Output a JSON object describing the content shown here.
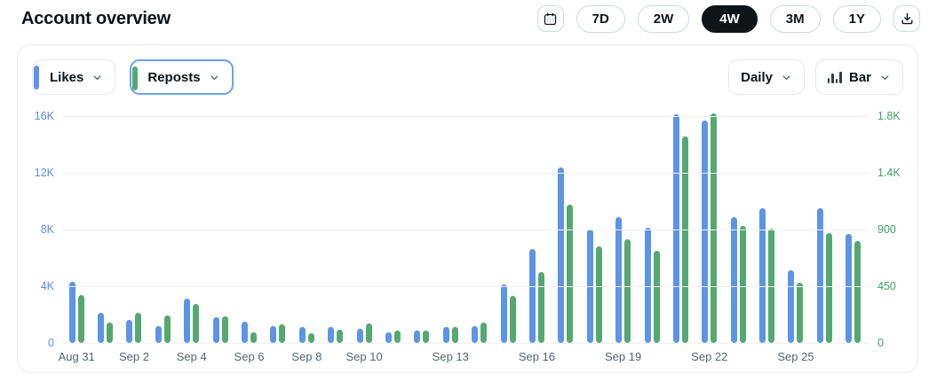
{
  "header": {
    "title": "Account overview",
    "calendar_icon": "calendar-icon",
    "download_icon": "download-icon",
    "ranges": [
      {
        "label": "7D",
        "active": false
      },
      {
        "label": "2W",
        "active": false
      },
      {
        "label": "4W",
        "active": true
      },
      {
        "label": "3M",
        "active": false
      },
      {
        "label": "1Y",
        "active": false
      }
    ],
    "active_pill_bg": "#0f1419"
  },
  "controls": {
    "likes": {
      "label": "Likes",
      "accent_color": "#5d95e6",
      "focused": false
    },
    "reposts": {
      "label": "Reposts",
      "accent_color": "#55a871",
      "focused": true,
      "focus_ring_color": "#6aa3f0"
    },
    "interval": {
      "label": "Daily"
    },
    "chart_type": {
      "label": "Bar",
      "icon": "bar-chart-icon"
    }
  },
  "chart_data": {
    "type": "bar",
    "title": "Account overview",
    "categories": [
      "Aug 31",
      "Sep 1",
      "Sep 2",
      "Sep 3",
      "Sep 4",
      "Sep 5",
      "Sep 6",
      "Sep 7",
      "Sep 8",
      "Sep 9",
      "Sep 10",
      "Sep 11",
      "Sep 12",
      "Sep 13",
      "Sep 14",
      "Sep 15",
      "Sep 16",
      "Sep 17",
      "Sep 18",
      "Sep 19",
      "Sep 20",
      "Sep 21",
      "Sep 22",
      "Sep 23",
      "Sep 24",
      "Sep 25",
      "Sep 26",
      "Sep 27"
    ],
    "x_tick_indices": [
      0,
      2,
      4,
      6,
      8,
      10,
      13,
      16,
      19,
      22,
      25
    ],
    "series": [
      {
        "name": "Likes",
        "axis": "left",
        "color": "#5d95e6",
        "values": [
          4300,
          2100,
          1600,
          1200,
          3100,
          1800,
          1500,
          1200,
          1100,
          1100,
          1000,
          770,
          870,
          1100,
          1200,
          4100,
          6600,
          12400,
          8000,
          8900,
          8100,
          16100,
          15700,
          8900,
          9500,
          5100,
          9500,
          7700
        ]
      },
      {
        "name": "Reposts",
        "axis": "right",
        "color": "#55a871",
        "values": [
          380,
          160,
          240,
          220,
          310,
          210,
          85,
          145,
          75,
          105,
          155,
          100,
          100,
          130,
          165,
          370,
          560,
          1100,
          770,
          825,
          730,
          1640,
          1820,
          930,
          910,
          480,
          870,
          810
        ]
      }
    ],
    "left_axis": {
      "max": 16000,
      "ticks": [
        "0",
        "4K",
        "8K",
        "12K",
        "16K"
      ],
      "color": "#5b8ddb"
    },
    "right_axis": {
      "max": 1800,
      "ticks": [
        "0",
        "450",
        "900",
        "1.4K",
        "1.8K"
      ],
      "color": "#3fa066"
    },
    "grid": true,
    "legend_position": "none",
    "xlabel": "",
    "ylabel": ""
  }
}
